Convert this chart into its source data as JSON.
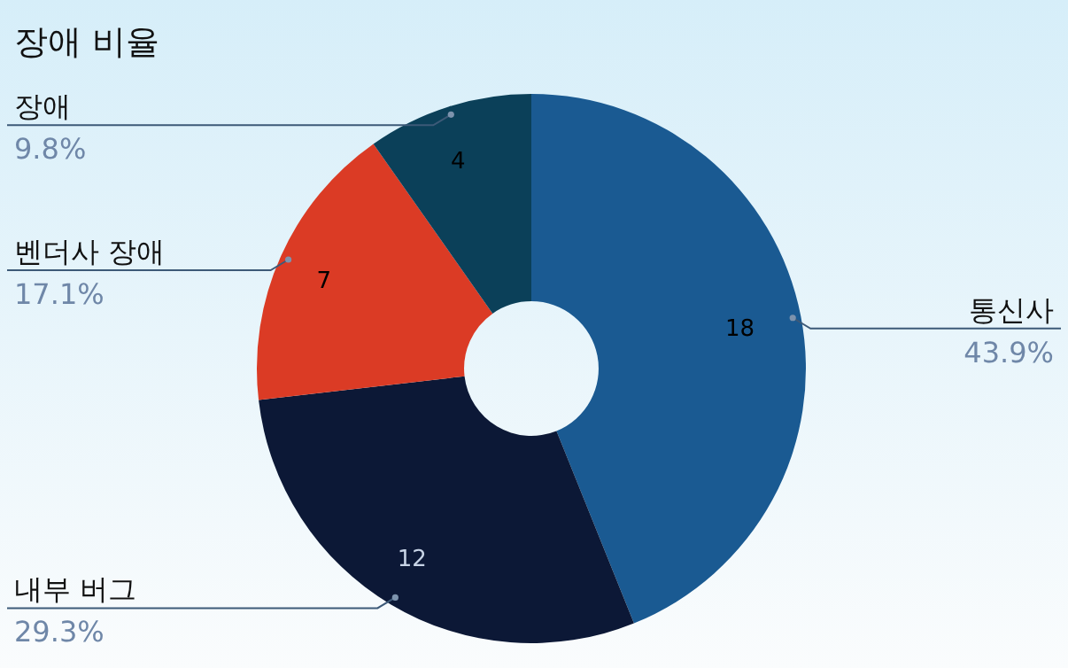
{
  "chart_data": {
    "type": "donut",
    "title": "장애 비율",
    "categories": [
      "통신사",
      "내부 버그",
      "벤더사 장애",
      "장애"
    ],
    "values": [
      18,
      12,
      7,
      4
    ],
    "colors": [
      "#1a5a92",
      "#0c1836",
      "#db3b25",
      "#0b4059"
    ],
    "annotations": [
      "43.9%",
      "29.3%",
      "17.1%",
      "9.8%"
    ],
    "data_labels": true
  }
}
